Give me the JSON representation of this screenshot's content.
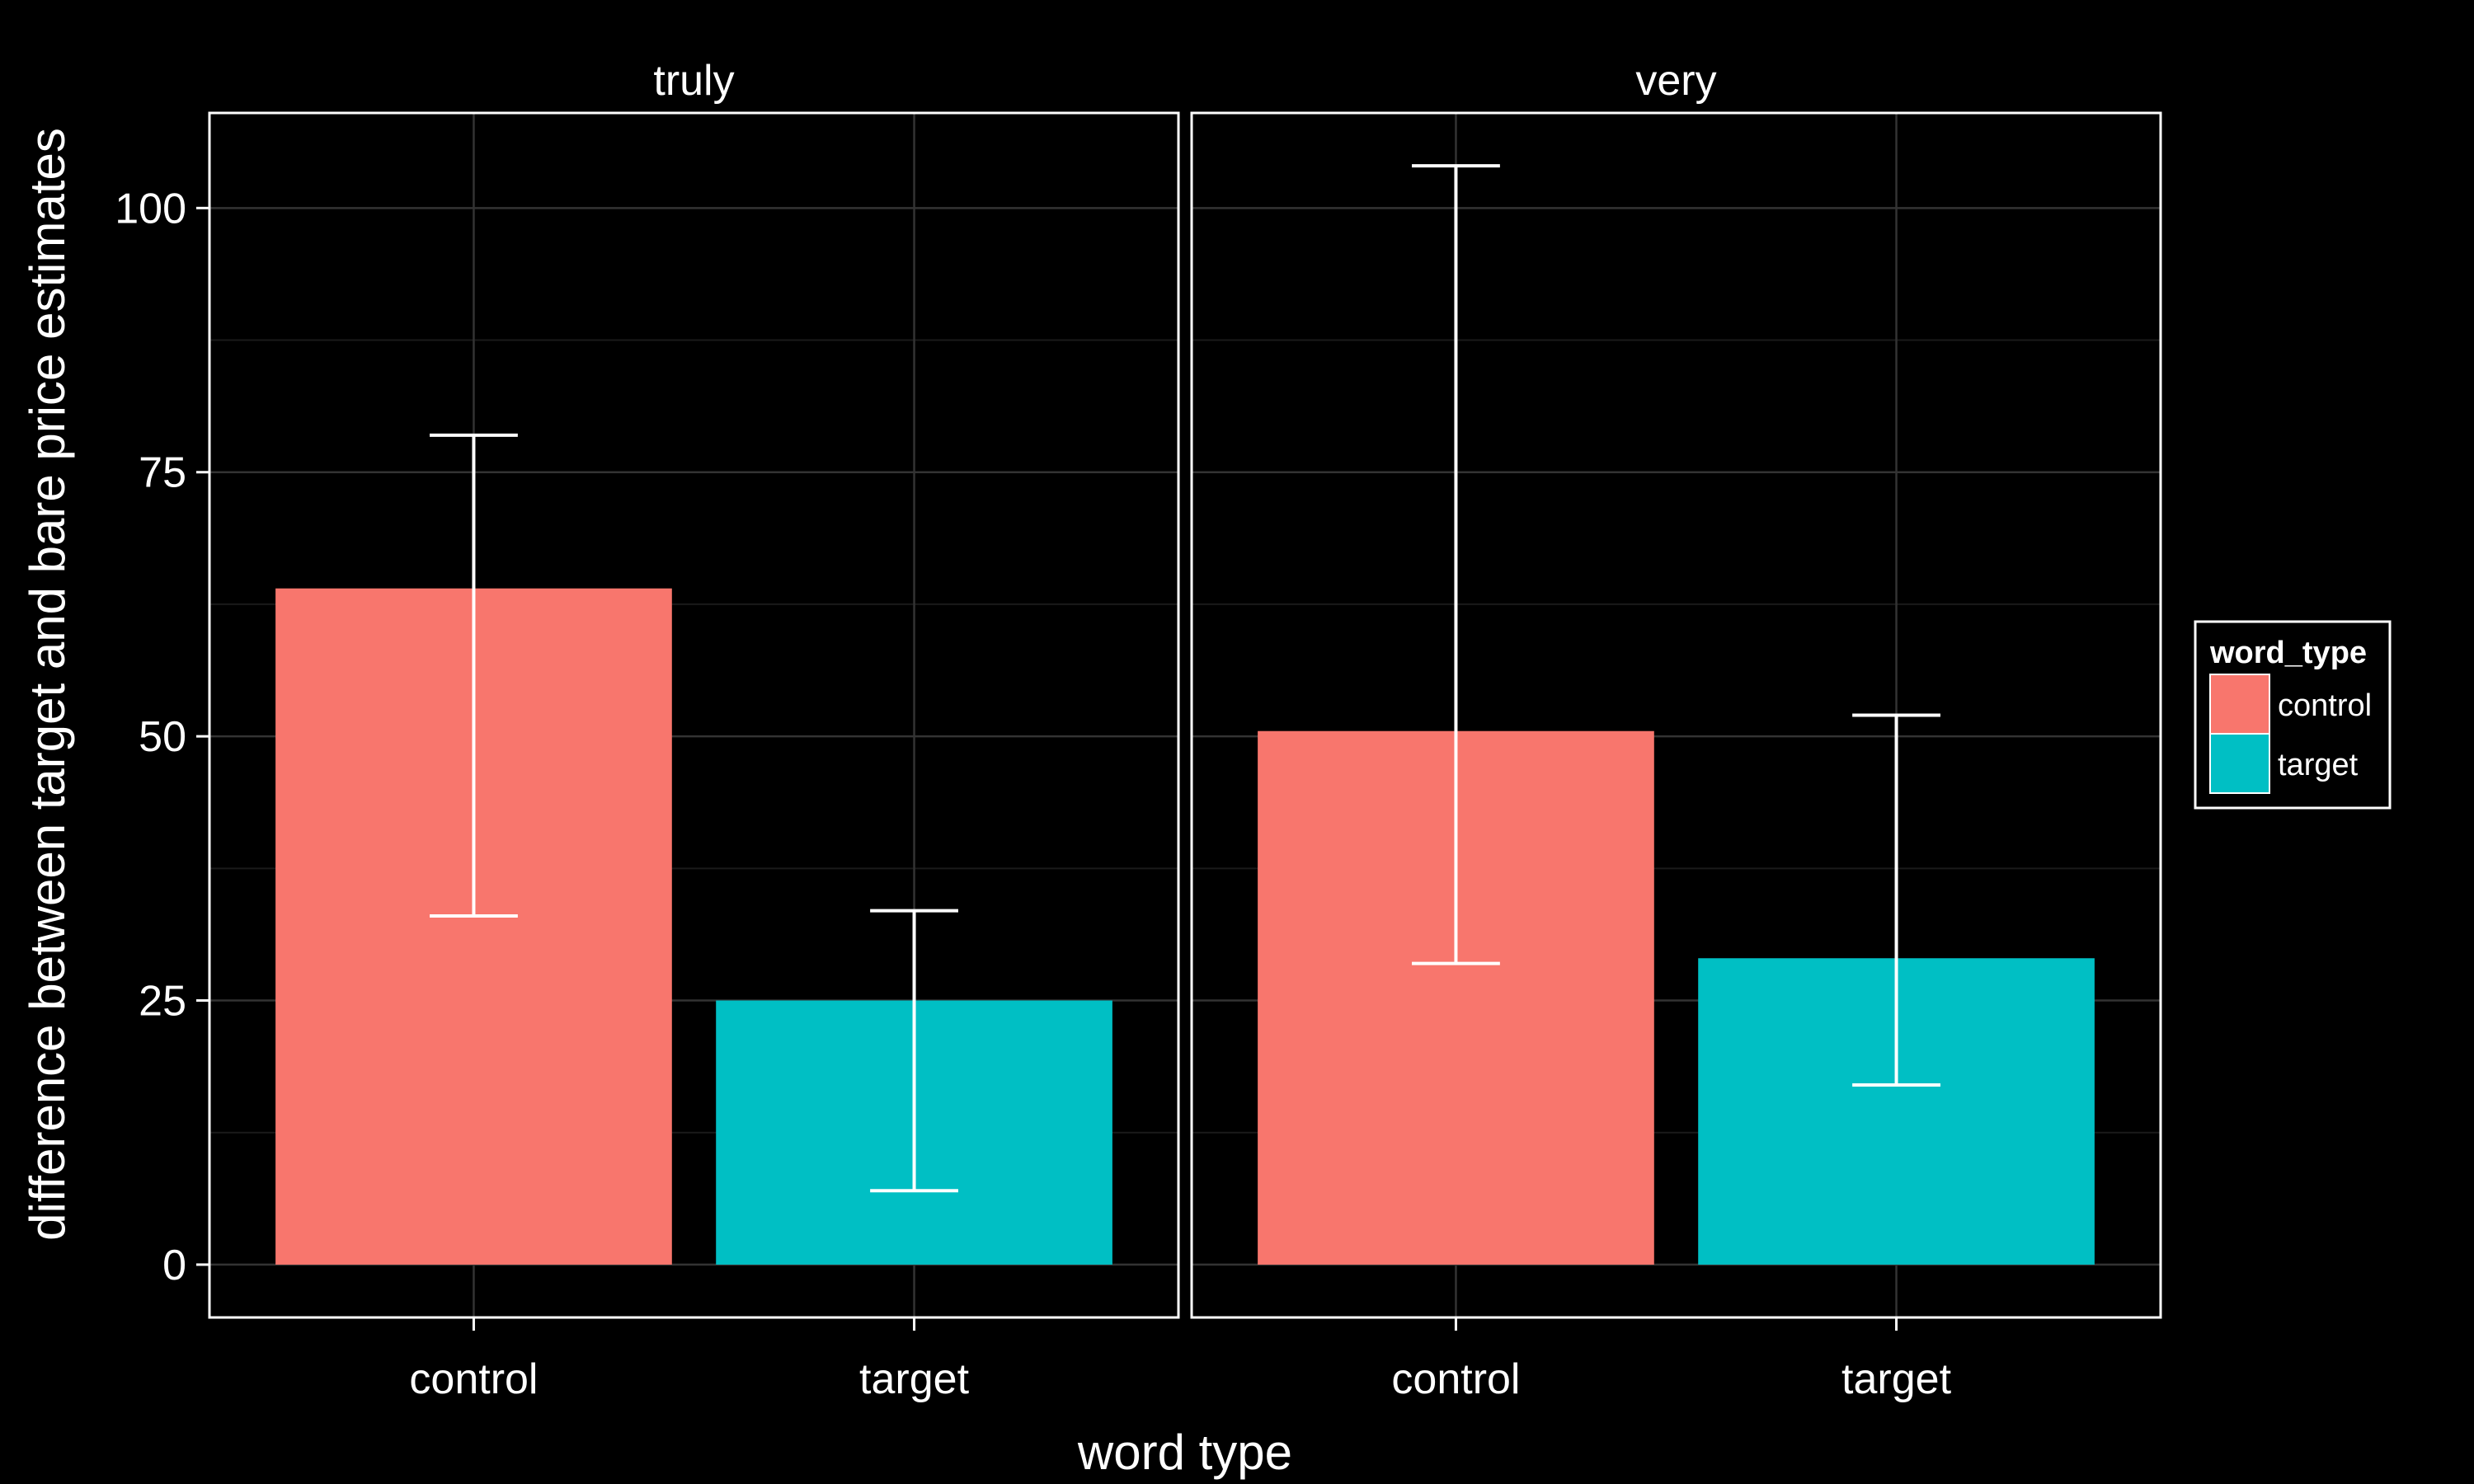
{
  "chart_data": {
    "type": "bar",
    "xlabel": "word type",
    "ylabel": "difference between target and bare price estimates",
    "ylim": [
      -5,
      109
    ],
    "yticks": [
      0,
      25,
      50,
      75,
      100
    ],
    "categories": [
      "control",
      "target"
    ],
    "grid": true,
    "facets": [
      {
        "label": "truly",
        "bars": [
          {
            "category": "control",
            "value": 64,
            "ci_low": 33,
            "ci_high": 78.5
          },
          {
            "category": "target",
            "value": 25,
            "ci_low": 7,
            "ci_high": 33.5
          }
        ]
      },
      {
        "label": "very",
        "bars": [
          {
            "category": "control",
            "value": 50.5,
            "ci_low": 28.5,
            "ci_high": 104
          },
          {
            "category": "target",
            "value": 29,
            "ci_low": 17,
            "ci_high": 52
          }
        ]
      }
    ],
    "legend": {
      "title": "word_type",
      "position": "right",
      "items": [
        {
          "label": "control",
          "color": "#F8766D"
        },
        {
          "label": "target",
          "color": "#00BFC4"
        }
      ]
    },
    "colors": {
      "background": "#000000",
      "panel_border": "#ffffff",
      "grid_major": "#333333",
      "grid_minor": "#1a1a1a",
      "errorbar": "#ffffff"
    }
  }
}
